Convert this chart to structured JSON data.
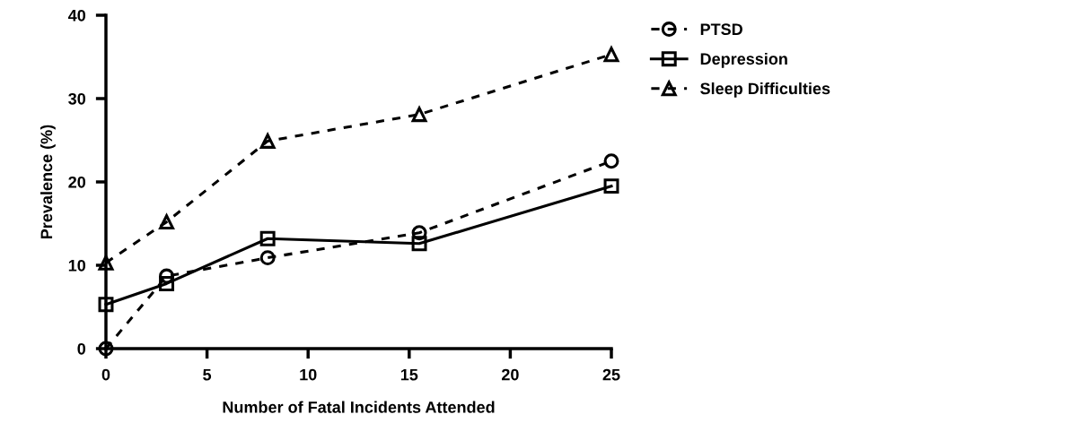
{
  "chart_data": {
    "type": "line",
    "xlabel": "Number of Fatal Incidents Attended",
    "ylabel": "Prevalence (%)",
    "xlim": [
      0,
      25
    ],
    "xticks": [
      0,
      5,
      10,
      15,
      20,
      25
    ],
    "ylim": [
      0,
      40
    ],
    "yticks": [
      0,
      10,
      20,
      30,
      40
    ],
    "grid": false,
    "legend": "top right",
    "series": [
      {
        "name": "PTSD",
        "color": "#000000",
        "marker": "circle",
        "line_style": "dashed",
        "x": [
          0,
          3,
          8,
          15.5,
          25
        ],
        "values": [
          0,
          8.7,
          10.9,
          13.9,
          22.5
        ]
      },
      {
        "name": "Depression",
        "color": "#000000",
        "marker": "square",
        "line_style": "solid",
        "x": [
          0,
          3,
          8,
          15.5,
          25
        ],
        "values": [
          5.3,
          7.8,
          13.2,
          12.6,
          19.5
        ]
      },
      {
        "name": "Sleep Difficulties",
        "color": "#000000",
        "marker": "triangle",
        "line_style": "dashed",
        "x": [
          0,
          3,
          8,
          15.5,
          25
        ],
        "values": [
          10.3,
          15.2,
          24.9,
          28.1,
          35.3
        ]
      }
    ]
  }
}
